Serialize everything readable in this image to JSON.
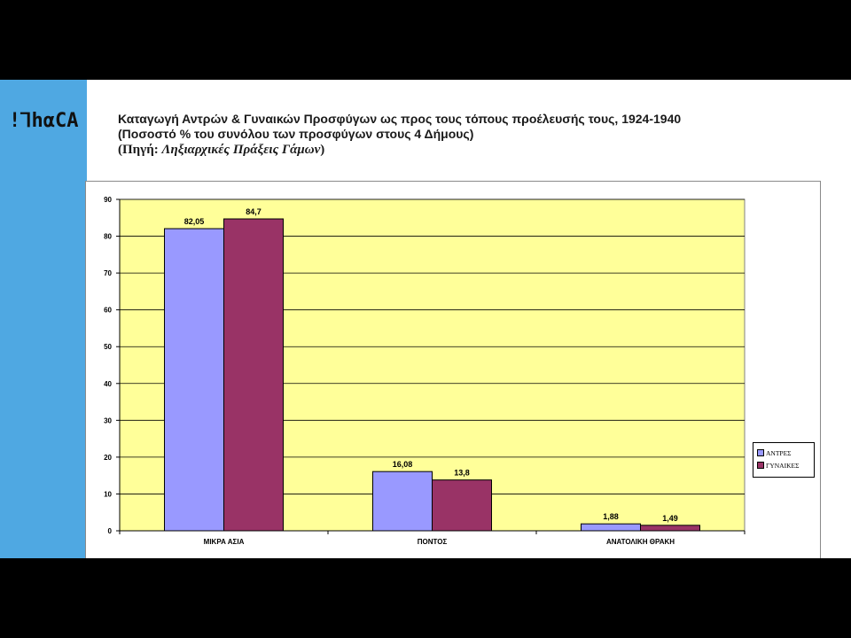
{
  "logo": {
    "text": "!ꓶhαCA"
  },
  "title": {
    "line1": "Καταγωγή Αντρών & Γυναικών Προσφύγων ως προς τους τόπους προέλευσής τους, 1924-1940",
    "line2": "(Ποσοστό % του συνόλου των προσφύγων στους 4  Δήμους)",
    "line3_prefix": "(Πηγή: ",
    "line3_source": "Ληξιαρχικές Πράξεις Γάμων",
    "line3_suffix": ")"
  },
  "colors": {
    "sidebar": "#4FA8E2",
    "plot_background": "#FFFF99",
    "men": "#9999FF",
    "women": "#993366"
  },
  "chart_data": {
    "type": "bar",
    "categories": [
      "ΜΙΚΡΑ ΑΣΙΑ",
      "ΠΟΝΤΟΣ",
      "ΑΝΑΤΟΛΙΚΗ ΘΡΑΚΗ"
    ],
    "series": [
      {
        "name": "ΑΝΤΡΕΣ",
        "values": [
          82.05,
          16.08,
          1.88
        ],
        "labels": [
          "82,05",
          "16,08",
          "1,88"
        ],
        "color": "#9999FF"
      },
      {
        "name": "ΓΥΝΑΙΚΕΣ",
        "values": [
          84.7,
          13.8,
          1.49
        ],
        "labels": [
          "84,7",
          "13,8",
          "1,49"
        ],
        "color": "#993366"
      }
    ],
    "ylim": [
      0,
      90
    ],
    "yticks": [
      0,
      10,
      20,
      30,
      40,
      50,
      60,
      70,
      80,
      90
    ],
    "grid": true,
    "legend": "right"
  }
}
